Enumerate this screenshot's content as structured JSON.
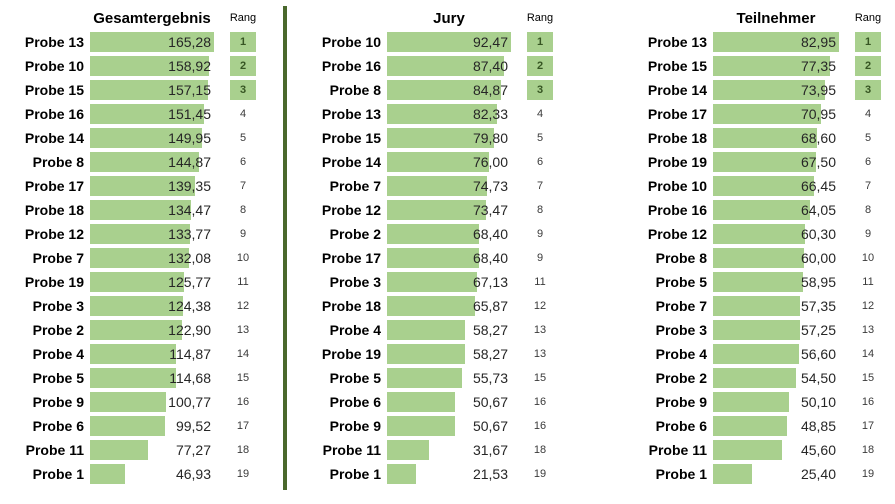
{
  "header": {
    "rank_label": "Rang"
  },
  "colors": {
    "bar_fill": "#a9d08e",
    "badge_background": "#a9d08e",
    "badge_text": "#375623",
    "divider": "#4a682c",
    "value_text": "#262626",
    "label_text": "#000000"
  },
  "chart_data": [
    {
      "type": "bar",
      "title": "Gesamtergebnis",
      "rank_header": "Rang",
      "categories": [
        "Probe 13",
        "Probe 10",
        "Probe 15",
        "Probe 16",
        "Probe 14",
        "Probe 8",
        "Probe 17",
        "Probe 18",
        "Probe 12",
        "Probe 7",
        "Probe 19",
        "Probe 3",
        "Probe 2",
        "Probe 4",
        "Probe 5",
        "Probe 9",
        "Probe 6",
        "Probe 11",
        "Probe 1"
      ],
      "values": [
        165.28,
        158.92,
        157.15,
        151.45,
        149.95,
        144.87,
        139.35,
        134.47,
        133.77,
        132.08,
        125.77,
        124.38,
        122.9,
        114.87,
        114.68,
        100.77,
        99.52,
        77.27,
        46.93
      ],
      "values_display": [
        "165,28",
        "158,92",
        "157,15",
        "151,45",
        "149,95",
        "144,87",
        "139,35",
        "134,47",
        "133,77",
        "132,08",
        "125,77",
        "124,38",
        "122,90",
        "114,87",
        "114,68",
        "100,77",
        "99,52",
        "77,27",
        "46,93"
      ],
      "ranks": [
        "1",
        "2",
        "3",
        "4",
        "5",
        "6",
        "7",
        "8",
        "9",
        "10",
        "11",
        "12",
        "13",
        "14",
        "15",
        "16",
        "17",
        "18",
        "19"
      ],
      "xlim": [
        0,
        165.28
      ]
    },
    {
      "type": "bar",
      "title": "Jury",
      "rank_header": "Rang",
      "categories": [
        "Probe 10",
        "Probe 16",
        "Probe 8",
        "Probe 13",
        "Probe 15",
        "Probe 14",
        "Probe 7",
        "Probe 12",
        "Probe 2",
        "Probe 17",
        "Probe 3",
        "Probe 18",
        "Probe 4",
        "Probe 19",
        "Probe 5",
        "Probe 6",
        "Probe 9",
        "Probe 11",
        "Probe 1"
      ],
      "values": [
        92.47,
        87.4,
        84.87,
        82.33,
        79.8,
        76.0,
        74.73,
        73.47,
        68.4,
        68.4,
        67.13,
        65.87,
        58.27,
        58.27,
        55.73,
        50.67,
        50.67,
        31.67,
        21.53
      ],
      "values_display": [
        "92,47",
        "87,40",
        "84,87",
        "82,33",
        "79,80",
        "76,00",
        "74,73",
        "73,47",
        "68,40",
        "68,40",
        "67,13",
        "65,87",
        "58,27",
        "58,27",
        "55,73",
        "50,67",
        "50,67",
        "31,67",
        "21,53"
      ],
      "ranks": [
        "1",
        "2",
        "3",
        "4",
        "5",
        "6",
        "7",
        "8",
        "9",
        "9",
        "11",
        "12",
        "13",
        "13",
        "15",
        "16",
        "16",
        "18",
        "19"
      ],
      "xlim": [
        0,
        92.47
      ]
    },
    {
      "type": "bar",
      "title": "Teilnehmer",
      "rank_header": "Rang",
      "categories": [
        "Probe 13",
        "Probe 15",
        "Probe 14",
        "Probe 17",
        "Probe 18",
        "Probe 19",
        "Probe 10",
        "Probe 16",
        "Probe 12",
        "Probe 8",
        "Probe 5",
        "Probe 7",
        "Probe 3",
        "Probe 4",
        "Probe 2",
        "Probe 9",
        "Probe 6",
        "Probe 11",
        "Probe 1"
      ],
      "values": [
        82.95,
        77.35,
        73.95,
        70.95,
        68.6,
        67.5,
        66.45,
        64.05,
        60.3,
        60.0,
        58.95,
        57.35,
        57.25,
        56.6,
        54.5,
        50.1,
        48.85,
        45.6,
        25.4
      ],
      "values_display": [
        "82,95",
        "77,35",
        "73,95",
        "70,95",
        "68,60",
        "67,50",
        "66,45",
        "64,05",
        "60,30",
        "60,00",
        "58,95",
        "57,35",
        "57,25",
        "56,60",
        "54,50",
        "50,10",
        "48,85",
        "45,60",
        "25,40"
      ],
      "ranks": [
        "1",
        "2",
        "3",
        "4",
        "5",
        "6",
        "7",
        "8",
        "9",
        "10",
        "11",
        "12",
        "13",
        "14",
        "15",
        "16",
        "17",
        "18",
        "19"
      ],
      "xlim": [
        0,
        82.95
      ]
    }
  ]
}
